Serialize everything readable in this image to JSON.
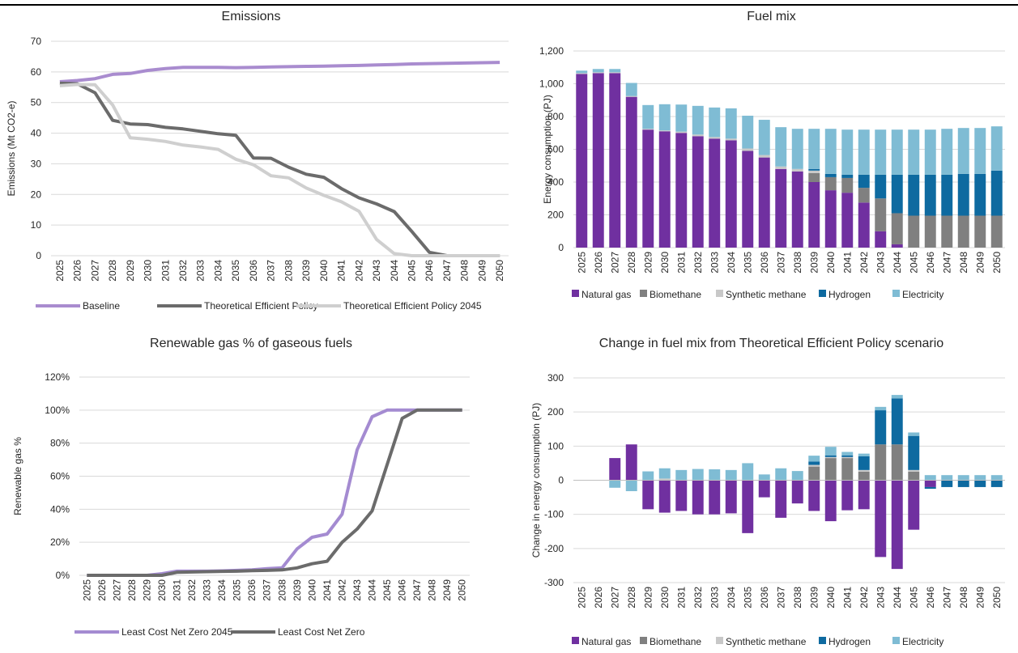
{
  "colors": {
    "natural_gas": "#7030a0",
    "biomethane": "#808080",
    "synthetic_methane": "#c8c8c8",
    "hydrogen": "#0e6aa0",
    "electricity": "#7fbcd4",
    "baseline": "#a98ccf",
    "tep": "#6b6b6b",
    "tep2045": "#cfcfcf",
    "lcnz2045": "#a48bd1",
    "lcnz": "#6b6b6b",
    "grid": "#d9d9d9"
  },
  "chart_data": [
    {
      "id": "emissions",
      "type": "line",
      "title": "Emissions",
      "xlabel": "",
      "ylabel": "Emissions (Mt CO2-e)",
      "ylim": [
        0,
        70
      ],
      "yticks": [
        0,
        10,
        20,
        30,
        40,
        50,
        60,
        70
      ],
      "ytick_labels": [
        "0",
        "10",
        "20",
        "30",
        "40",
        "50",
        "60",
        "70"
      ],
      "grid": true,
      "legend": "bottom",
      "categories": [
        "2025",
        "2026",
        "2027",
        "2028",
        "2029",
        "2030",
        "2031",
        "2032",
        "2033",
        "2034",
        "2035",
        "2036",
        "2037",
        "2038",
        "2039",
        "2040",
        "2041",
        "2042",
        "2043",
        "2044",
        "2045",
        "2046",
        "2047",
        "2048",
        "2049",
        "2050"
      ],
      "series": [
        {
          "name": "Baseline",
          "color_key": "baseline",
          "values": [
            56.8,
            57.2,
            57.8,
            59.2,
            59.5,
            60.5,
            61.1,
            61.5,
            61.5,
            61.5,
            61.4,
            61.5,
            61.6,
            61.7,
            61.8,
            61.9,
            62,
            62.1,
            62.3,
            62.4,
            62.6,
            62.7,
            62.8,
            62.9,
            63,
            63.1
          ]
        },
        {
          "name": "Theoretical Efficient Policy",
          "color_key": "tep",
          "values": [
            56.3,
            56.1,
            53.2,
            44.2,
            43,
            42.8,
            41.9,
            41.4,
            40.6,
            39.8,
            39.3,
            31.9,
            31.8,
            28.9,
            26.6,
            25.6,
            21.9,
            18.9,
            16.9,
            14.4,
            7.9,
            1.1,
            0,
            0,
            0,
            0
          ]
        },
        {
          "name": "Theoretical Efficient Policy 2045",
          "color_key": "tep2045",
          "values": [
            55.5,
            55.9,
            55.8,
            49.2,
            38.5,
            38,
            37.3,
            36.1,
            35.5,
            34.7,
            31.5,
            29.7,
            26.1,
            25.4,
            22.1,
            19.7,
            17.6,
            14.5,
            5.3,
            0.7,
            0,
            0,
            0,
            0,
            0,
            0
          ]
        }
      ]
    },
    {
      "id": "fuel_mix",
      "type": "bar",
      "stacked": true,
      "title": "Fuel mix",
      "xlabel": "",
      "ylabel": "Energy consumption (PJ)",
      "ylim": [
        0,
        1200
      ],
      "yticks": [
        0,
        200,
        400,
        600,
        800,
        1000,
        1200
      ],
      "ytick_labels": [
        "0",
        "200",
        "400",
        "600",
        "800",
        "1,000",
        "1,200"
      ],
      "grid": true,
      "legend": "bottom",
      "categories": [
        "2025",
        "2026",
        "2027",
        "2028",
        "2029",
        "2030",
        "2031",
        "2032",
        "2033",
        "2034",
        "2035",
        "2036",
        "2037",
        "2038",
        "2039",
        "2040",
        "2041",
        "2042",
        "2043",
        "2044",
        "2045",
        "2046",
        "2047",
        "2048",
        "2049",
        "2050"
      ],
      "series": [
        {
          "name": "Natural gas",
          "color_key": "natural_gas",
          "values": [
            1060,
            1065,
            1065,
            920,
            720,
            710,
            700,
            680,
            665,
            655,
            590,
            550,
            480,
            465,
            400,
            350,
            335,
            275,
            100,
            20,
            0,
            0,
            0,
            0,
            0,
            0
          ]
        },
        {
          "name": "Biomethane",
          "color_key": "biomethane",
          "values": [
            0,
            0,
            0,
            0,
            0,
            0,
            0,
            0,
            0,
            0,
            0,
            0,
            0,
            0,
            55,
            80,
            90,
            90,
            200,
            190,
            195,
            195,
            195,
            195,
            195,
            195
          ]
        },
        {
          "name": "Synthetic methane",
          "color_key": "synthetic_methane",
          "values": [
            5,
            5,
            5,
            5,
            5,
            5,
            8,
            10,
            10,
            10,
            15,
            15,
            15,
            15,
            15,
            0,
            0,
            0,
            0,
            0,
            0,
            0,
            0,
            0,
            0,
            0
          ]
        },
        {
          "name": "Hydrogen",
          "color_key": "hydrogen",
          "values": [
            0,
            0,
            0,
            0,
            0,
            0,
            0,
            0,
            0,
            0,
            0,
            0,
            0,
            0,
            10,
            20,
            20,
            80,
            145,
            235,
            250,
            250,
            250,
            255,
            255,
            275
          ]
        },
        {
          "name": "Electricity",
          "color_key": "electricity",
          "values": [
            15,
            20,
            20,
            80,
            145,
            160,
            165,
            175,
            180,
            185,
            200,
            215,
            240,
            245,
            245,
            275,
            275,
            275,
            275,
            275,
            275,
            275,
            280,
            280,
            280,
            270
          ]
        }
      ]
    },
    {
      "id": "renewable_gas",
      "type": "line",
      "title": "Renewable gas % of gaseous fuels",
      "xlabel": "",
      "ylabel": "Renewable gas %",
      "ylim": [
        0,
        1.2
      ],
      "yticks": [
        0,
        0.2,
        0.4,
        0.6,
        0.8,
        1.0,
        1.2
      ],
      "ytick_labels": [
        "0%",
        "20%",
        "40%",
        "60%",
        "80%",
        "100%",
        "120%"
      ],
      "grid": true,
      "legend": "bottom",
      "categories": [
        "2025",
        "2026",
        "2027",
        "2028",
        "2029",
        "2030",
        "2031",
        "2032",
        "2033",
        "2034",
        "2035",
        "2036",
        "2037",
        "2038",
        "2039",
        "2040",
        "2041",
        "2042",
        "2043",
        "2044",
        "2045",
        "2046",
        "2047",
        "2048",
        "2049",
        "2050"
      ],
      "series": [
        {
          "name": "Least Cost Net Zero 2045",
          "color_key": "lcnz2045",
          "values": [
            0,
            0,
            0,
            0,
            0,
            0.01,
            0.025,
            0.025,
            0.025,
            0.027,
            0.03,
            0.033,
            0.04,
            0.045,
            0.16,
            0.23,
            0.25,
            0.37,
            0.76,
            0.96,
            1,
            1,
            1,
            1,
            1,
            1
          ]
        },
        {
          "name": "Least Cost Net Zero",
          "color_key": "lcnz",
          "values": [
            0,
            0,
            0,
            0,
            0,
            0,
            0.018,
            0.02,
            0.022,
            0.024,
            0.025,
            0.028,
            0.03,
            0.033,
            0.045,
            0.07,
            0.085,
            0.2,
            0.28,
            0.39,
            0.67,
            0.95,
            1,
            1,
            1,
            1
          ]
        }
      ]
    },
    {
      "id": "change_fuel_mix",
      "type": "bar",
      "stacked": true,
      "title": "Change in fuel mix from Theoretical Efficient Policy scenario",
      "xlabel": "",
      "ylabel": "Change in energy consumption (PJ)",
      "ylim": [
        -300,
        300
      ],
      "yticks": [
        -300,
        -200,
        -100,
        0,
        100,
        200,
        300
      ],
      "ytick_labels": [
        "-300",
        "-200",
        "-100",
        "0",
        "100",
        "200",
        "300"
      ],
      "grid": true,
      "legend": "bottom",
      "categories": [
        "2025",
        "2026",
        "2027",
        "2028",
        "2029",
        "2030",
        "2031",
        "2032",
        "2033",
        "2034",
        "2035",
        "2036",
        "2037",
        "2038",
        "2039",
        "2040",
        "2041",
        "2042",
        "2043",
        "2044",
        "2045",
        "2046",
        "2047",
        "2048",
        "2049",
        "2050"
      ],
      "series": [
        {
          "name": "Natural gas",
          "color_key": "natural_gas",
          "values": [
            0,
            0,
            65,
            105,
            -85,
            -95,
            -90,
            -100,
            -100,
            -97,
            -155,
            -50,
            -110,
            -68,
            -90,
            -120,
            -88,
            -85,
            -225,
            -260,
            -145,
            -20,
            0,
            0,
            0,
            0
          ]
        },
        {
          "name": "Biomethane",
          "color_key": "biomethane",
          "values": [
            0,
            0,
            0,
            0,
            0,
            0,
            0,
            0,
            0,
            0,
            0,
            0,
            0,
            0,
            40,
            65,
            65,
            25,
            105,
            105,
            25,
            0,
            0,
            0,
            0,
            0
          ]
        },
        {
          "name": "Synthetic methane",
          "color_key": "synthetic_methane",
          "values": [
            0,
            0,
            0,
            0,
            0,
            5,
            0,
            0,
            0,
            0,
            0,
            0,
            0,
            0,
            5,
            3,
            3,
            5,
            0,
            0,
            5,
            0,
            0,
            0,
            0,
            0
          ]
        },
        {
          "name": "Hydrogen",
          "color_key": "hydrogen",
          "values": [
            0,
            0,
            0,
            0,
            0,
            0,
            0,
            0,
            0,
            0,
            0,
            0,
            0,
            0,
            10,
            5,
            5,
            40,
            100,
            135,
            100,
            -5,
            -20,
            -20,
            -20,
            -20
          ]
        },
        {
          "name": "Electricity",
          "color_key": "electricity",
          "values": [
            0,
            0,
            -22,
            -32,
            26,
            30,
            30,
            33,
            32,
            30,
            50,
            17,
            35,
            27,
            17,
            25,
            10,
            8,
            10,
            10,
            10,
            15,
            15,
            15,
            15,
            15
          ]
        }
      ]
    }
  ]
}
